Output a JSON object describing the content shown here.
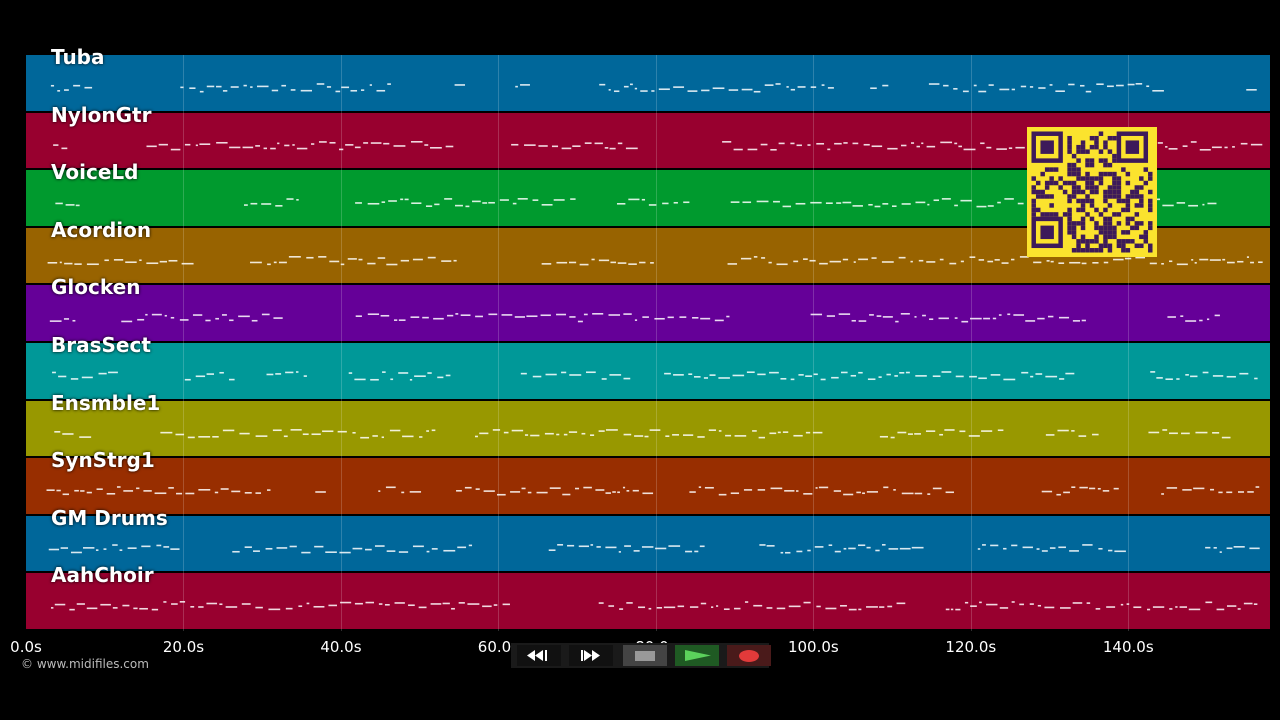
{
  "tracks": [
    {
      "name": "Tuba",
      "color": "#00679a"
    },
    {
      "name": "NylonGtr",
      "color": "#98002f"
    },
    {
      "name": "VoiceLd",
      "color": "#009a2e"
    },
    {
      "name": "Acordion",
      "color": "#986300"
    },
    {
      "name": "Glocken",
      "color": "#650098"
    },
    {
      "name": "BrasSect",
      "color": "#009898"
    },
    {
      "name": "Ensmble1",
      "color": "#989800"
    },
    {
      "name": "SynStrg1",
      "color": "#982e00"
    },
    {
      "name": "GM Drums",
      "color": "#00679a"
    },
    {
      "name": "AahChoir",
      "color": "#98002f"
    }
  ],
  "timeline": {
    "ticks": [
      "0.0s",
      "20.0s",
      "40.0s",
      "60.0s",
      "80.0s",
      "100.0s",
      "120.0s",
      "140.0s"
    ],
    "tick_values": [
      0,
      20,
      40,
      60,
      80,
      100,
      120,
      140
    ],
    "max_seconds": 158
  },
  "transport": {
    "rewind_icon": "rewind-icon",
    "fast_forward_icon": "fast-forward-icon",
    "stop_icon": "stop-icon",
    "play_icon": "play-icon",
    "record_icon": "record-icon"
  },
  "copyright": "© www.midifiles.com",
  "qr_icon": "qr-code-icon"
}
